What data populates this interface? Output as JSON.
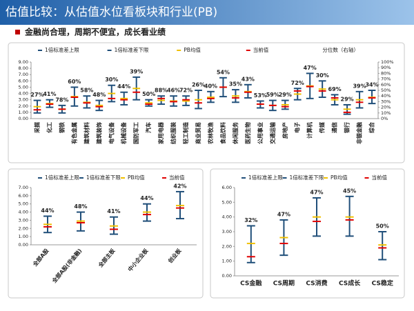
{
  "header": {
    "title": "估值比较：从估值水位看板块和行业(PB)",
    "subtitle": "金融尚合理，周期不便宜，成长看业绩"
  },
  "chart_data": [
    {
      "type": "range",
      "categories": [
        "采掘",
        "化工",
        "钢铁",
        "有色金属",
        "建筑材料",
        "建筑装饰",
        "电气设备",
        "机械设备",
        "国防军工",
        "汽车",
        "家用电器",
        "纺织服装",
        "轻工制造",
        "商业贸易",
        "农林牧渔",
        "食品饮料",
        "休闲服务",
        "医药生物",
        "公用事业",
        "交通运输",
        "房地产",
        "电子",
        "计算机",
        "传媒",
        "通信",
        "银行",
        "非银金融",
        "综合"
      ],
      "series": [
        {
          "name": "1倍标准差上限",
          "color": "#1f4e79",
          "values": [
            2.9,
            3.0,
            2.1,
            5.0,
            3.6,
            2.9,
            5.3,
            4.2,
            6.6,
            3.0,
            3.6,
            3.6,
            3.6,
            4.5,
            4.3,
            6.5,
            4.6,
            5.4,
            2.8,
            2.9,
            2.9,
            4.8,
            7.2,
            6.0,
            3.8,
            2.2,
            4.3,
            4.5
          ]
        },
        {
          "name": "1倍标准差下限",
          "color": "#1f4e79",
          "values": [
            0.9,
            1.8,
            0.9,
            2.0,
            1.7,
            1.3,
            2.7,
            2.2,
            3.0,
            2.0,
            2.3,
            2.0,
            2.1,
            1.6,
            2.6,
            3.5,
            2.6,
            3.3,
            1.7,
            1.3,
            1.5,
            3.0,
            3.2,
            3.4,
            2.2,
            0.7,
            1.7,
            2.4
          ]
        },
        {
          "name": "PB均值",
          "color": "#f0c000",
          "values": [
            1.9,
            2.4,
            1.5,
            3.5,
            2.6,
            2.1,
            4.0,
            3.2,
            4.8,
            2.5,
            2.9,
            2.8,
            2.8,
            3.0,
            3.4,
            5.0,
            3.6,
            4.3,
            2.3,
            2.1,
            2.2,
            3.9,
            5.2,
            4.7,
            3.0,
            1.5,
            3.0,
            3.4
          ]
        },
        {
          "name": "当前值",
          "color": "#e00000",
          "values": [
            1.4,
            2.3,
            1.5,
            3.4,
            2.5,
            1.9,
            3.2,
            3.0,
            4.2,
            2.3,
            3.2,
            2.7,
            3.0,
            2.5,
            3.2,
            5.0,
            3.3,
            4.2,
            2.3,
            2.1,
            1.9,
            4.4,
            5.1,
            4.4,
            3.3,
            1.0,
            2.6,
            3.3
          ]
        },
        {
          "name": "分位数（右轴）",
          "axis": "y2",
          "values": [
            27,
            41,
            78,
            60,
            58,
            48,
            30,
            44,
            39,
            50,
            88,
            46,
            72,
            26,
            40,
            54,
            35,
            43,
            53,
            59,
            29,
            72,
            47,
            30,
            69,
            29,
            39,
            34
          ],
          "value_labels": [
            "27%",
            "41%",
            "78%",
            "60%",
            "58%",
            "48%",
            "30%",
            "44%",
            "39%",
            "50%",
            "88%",
            "46%",
            "72%",
            "26%",
            "40%",
            "54%",
            "35%",
            "43%",
            "53%",
            "59%",
            "29%",
            "72%",
            "47%",
            "30%",
            "69%",
            "29%",
            "39%",
            "34%"
          ]
        }
      ],
      "ylim": [
        0,
        9
      ],
      "yticks": [
        {
          "value": 0,
          "label": "0.00"
        },
        {
          "value": 1,
          "label": "1.00"
        },
        {
          "value": 2,
          "label": "2.00"
        },
        {
          "value": 3,
          "label": "3.00"
        },
        {
          "value": 4,
          "label": "4.00"
        },
        {
          "value": 5,
          "label": "5.00"
        },
        {
          "value": 6,
          "label": "6.00"
        },
        {
          "value": 7,
          "label": "7.00"
        },
        {
          "value": 8,
          "label": "8.00"
        },
        {
          "value": 9,
          "label": "9.00"
        }
      ],
      "y2lim": [
        0,
        100
      ],
      "y2ticks": [
        {
          "value": 0,
          "label": "0%"
        },
        {
          "value": 10,
          "label": "10%"
        },
        {
          "value": 20,
          "label": "20%"
        },
        {
          "value": 30,
          "label": "30%"
        },
        {
          "value": 40,
          "label": "40%"
        },
        {
          "value": 50,
          "label": "50%"
        },
        {
          "value": 60,
          "label": "60%"
        },
        {
          "value": 70,
          "label": "70%"
        },
        {
          "value": 80,
          "label": "80%"
        },
        {
          "value": 90,
          "label": "90%"
        },
        {
          "value": 100,
          "label": "100%"
        }
      ]
    },
    {
      "type": "range",
      "categories": [
        "全部A股",
        "全部A股(非金融)",
        "全部主板",
        "中小企业板",
        "创业板"
      ],
      "series": [
        {
          "name": "1倍标准差上限",
          "color": "#1f4e79",
          "values": [
            3.5,
            4.0,
            3.4,
            5.0,
            6.5
          ]
        },
        {
          "name": "1倍标准差下限",
          "color": "#1f4e79",
          "values": [
            1.5,
            1.7,
            1.3,
            2.9,
            3.2
          ]
        },
        {
          "name": "PB均值",
          "color": "#f0c000",
          "values": [
            2.5,
            2.9,
            2.3,
            4.0,
            4.8
          ]
        },
        {
          "name": "当前值",
          "color": "#e00000",
          "values": [
            2.2,
            2.7,
            1.9,
            3.7,
            4.5
          ]
        },
        {
          "values": [
            44,
            48,
            41,
            44,
            42
          ],
          "value_labels": [
            "44%",
            "48%",
            "41%",
            "44%",
            "42%"
          ]
        }
      ],
      "ylim": [
        0,
        7
      ],
      "yticks": [
        {
          "value": 0,
          "label": "0.00"
        },
        {
          "value": 1,
          "label": "1.00"
        },
        {
          "value": 2,
          "label": "2.00"
        },
        {
          "value": 3,
          "label": "3.00"
        },
        {
          "value": 4,
          "label": "4.00"
        },
        {
          "value": 5,
          "label": "5.00"
        },
        {
          "value": 6,
          "label": "6.00"
        },
        {
          "value": 7,
          "label": "7.00"
        }
      ]
    },
    {
      "type": "range",
      "categories": [
        "CS金融",
        "CS周期",
        "CS消费",
        "CS成长",
        "CS稳定"
      ],
      "series": [
        {
          "name": "1倍标准差上限",
          "color": "#1f4e79",
          "values": [
            3.4,
            3.8,
            5.3,
            5.4,
            3.0
          ]
        },
        {
          "name": "1倍标准差下限",
          "color": "#1f4e79",
          "values": [
            0.9,
            1.4,
            2.7,
            2.7,
            1.1
          ]
        },
        {
          "name": "PB均值",
          "color": "#f0c000",
          "values": [
            2.2,
            2.6,
            4.0,
            4.0,
            2.1
          ]
        },
        {
          "name": "当前值",
          "color": "#e00000",
          "values": [
            1.3,
            2.2,
            3.7,
            3.8,
            1.9
          ]
        },
        {
          "values": [
            32,
            47,
            47,
            45,
            50
          ],
          "value_labels": [
            "32%",
            "47%",
            "47%",
            "45%",
            "50%"
          ]
        }
      ],
      "ylim": [
        0,
        6
      ],
      "yticks": [
        {
          "value": 0,
          "label": "0.00"
        },
        {
          "value": 1,
          "label": "1.00"
        },
        {
          "value": 2,
          "label": "2.00"
        },
        {
          "value": 3,
          "label": "3.00"
        },
        {
          "value": 4,
          "label": "4.00"
        },
        {
          "value": 5,
          "label": "5.00"
        },
        {
          "value": 6,
          "label": "6.00"
        }
      ]
    }
  ]
}
